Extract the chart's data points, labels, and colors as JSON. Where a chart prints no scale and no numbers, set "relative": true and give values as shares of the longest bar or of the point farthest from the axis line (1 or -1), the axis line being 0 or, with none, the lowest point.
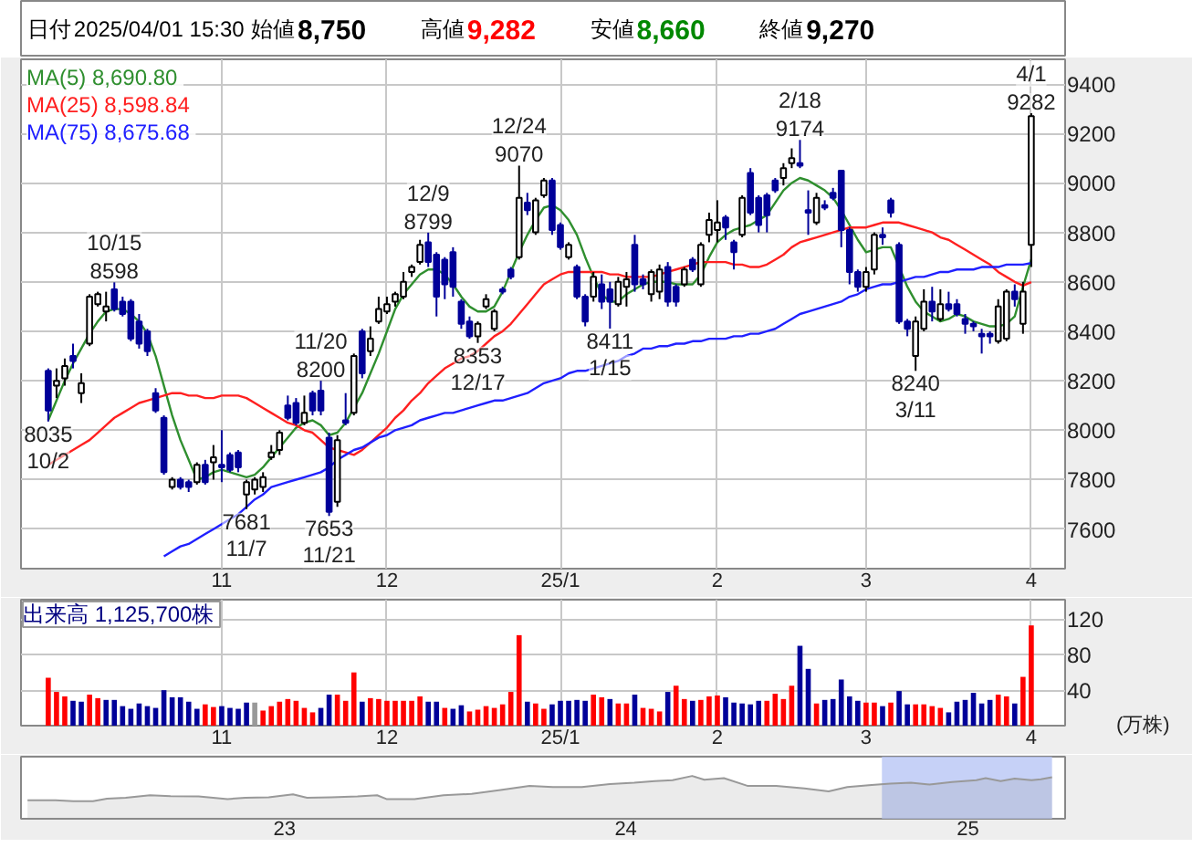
{
  "chart_data": [
    {
      "type": "candlestick",
      "annotations": [
        "日付",
        "2025/04/01 15:30",
        "始値",
        "8,750",
        "高値",
        "9,282",
        "安値",
        "8,660",
        "終値",
        "9,270",
        {
          "text": "10/15",
          "y": 8598
        },
        {
          "text": "8598",
          "y": 8598
        },
        {
          "text": "8035",
          "y": 8035
        },
        {
          "text": "10/2",
          "y": 8035
        },
        {
          "text": "7681",
          "y": 7681
        },
        {
          "text": "11/7",
          "y": 7681
        },
        {
          "text": "11/20",
          "y": 8200
        },
        {
          "text": "8200",
          "y": 8200
        },
        {
          "text": "7653",
          "y": 7653
        },
        {
          "text": "11/21",
          "y": 7653
        },
        {
          "text": "12/9",
          "y": 8799
        },
        {
          "text": "8799",
          "y": 8799
        },
        {
          "text": "8353",
          "y": 8353
        },
        {
          "text": "12/17",
          "y": 8353
        },
        {
          "text": "12/24",
          "y": 9070
        },
        {
          "text": "9070",
          "y": 9070
        },
        {
          "text": "8411",
          "y": 8411
        },
        {
          "text": "1/15",
          "y": 8411
        },
        {
          "text": "2/18",
          "y": 9174
        },
        {
          "text": "9174",
          "y": 9174
        },
        {
          "text": "8240",
          "y": 8240
        },
        {
          "text": "3/11",
          "y": 8240
        },
        {
          "text": "4/1",
          "y": 9282
        },
        {
          "text": "9282",
          "y": 9282
        }
      ],
      "categories": [
        null,
        null,
        null,
        null,
        null,
        null,
        null,
        null,
        null,
        null,
        null,
        null,
        null,
        null,
        null,
        null,
        null,
        null,
        null,
        null,
        null,
        "11",
        null,
        null,
        null,
        null,
        null,
        null,
        null,
        null,
        null,
        null,
        null,
        null,
        null,
        null,
        null,
        null,
        null,
        null,
        null,
        "12",
        null,
        null,
        null,
        null,
        null,
        null,
        null,
        null,
        null,
        null,
        null,
        null,
        null,
        null,
        null,
        null,
        null,
        null,
        null,
        null,
        "25/1",
        null,
        null,
        null,
        null,
        null,
        null,
        null,
        null,
        null,
        null,
        null,
        null,
        null,
        null,
        null,
        null,
        null,
        null,
        "2",
        null,
        null,
        null,
        null,
        null,
        null,
        null,
        null,
        null,
        null,
        null,
        null,
        null,
        null,
        null,
        null,
        null,
        "3",
        null,
        null,
        null,
        null,
        null,
        null,
        null,
        null,
        null,
        null,
        null,
        null,
        null,
        null,
        null,
        null,
        null,
        null,
        null,
        "4"
      ],
      "ohlc": [
        [
          8240,
          8250,
          8035,
          8080
        ],
        [
          8180,
          8250,
          8130,
          8200
        ],
        [
          8210,
          8290,
          8180,
          8260
        ],
        [
          8300,
          8350,
          8250,
          8280
        ],
        [
          8150,
          8230,
          8110,
          8190
        ],
        [
          8350,
          8550,
          8340,
          8540
        ],
        [
          8510,
          8560,
          8500,
          8550
        ],
        [
          8480,
          8560,
          8440,
          8500
        ],
        [
          8570,
          8598,
          8480,
          8490
        ],
        [
          8520,
          8540,
          8460,
          8470
        ],
        [
          8520,
          8530,
          8360,
          8370
        ],
        [
          8440,
          8470,
          8330,
          8350
        ],
        [
          8400,
          8410,
          8300,
          8320
        ],
        [
          8150,
          8170,
          8070,
          8080
        ],
        [
          8050,
          8060,
          7820,
          7830
        ],
        [
          7770,
          7810,
          7760,
          7800
        ],
        [
          7800,
          7810,
          7760,
          7770
        ],
        [
          7790,
          7800,
          7750,
          7770
        ],
        [
          7790,
          7870,
          7780,
          7860
        ],
        [
          7860,
          7880,
          7780,
          7790
        ],
        [
          7870,
          7940,
          7800,
          7890
        ],
        [
          7860,
          8000,
          7790,
          7850
        ],
        [
          7900,
          7910,
          7830,
          7840
        ],
        [
          7910,
          7920,
          7830,
          7850
        ],
        [
          7740,
          7800,
          7681,
          7790
        ],
        [
          7760,
          7810,
          7740,
          7800
        ],
        [
          7770,
          7830,
          7750,
          7810
        ],
        [
          7890,
          7940,
          7880,
          7910
        ],
        [
          7920,
          8000,
          7900,
          7990
        ],
        [
          8100,
          8140,
          8040,
          8050
        ],
        [
          8110,
          8130,
          8020,
          8030
        ],
        [
          8030,
          8140,
          8020,
          8070
        ],
        [
          8150,
          8160,
          8060,
          8080
        ],
        [
          8160,
          8200,
          8060,
          8080
        ],
        [
          7970,
          7990,
          7653,
          7670
        ],
        [
          7710,
          7980,
          7690,
          7960
        ],
        [
          8040,
          8150,
          8020,
          8030
        ],
        [
          8070,
          8310,
          8060,
          8300
        ],
        [
          8400,
          8410,
          8210,
          8230
        ],
        [
          8320,
          8420,
          8300,
          8370
        ],
        [
          8440,
          8540,
          8430,
          8490
        ],
        [
          8480,
          8540,
          8470,
          8510
        ],
        [
          8520,
          8560,
          8500,
          8550
        ],
        [
          8540,
          8640,
          8530,
          8600
        ],
        [
          8640,
          8670,
          8620,
          8660
        ],
        [
          8680,
          8770,
          8670,
          8750
        ],
        [
          8760,
          8799,
          8660,
          8680
        ],
        [
          8710,
          8720,
          8460,
          8540
        ],
        [
          8690,
          8700,
          8530,
          8590
        ],
        [
          8720,
          8740,
          8540,
          8580
        ],
        [
          8520,
          8530,
          8410,
          8430
        ],
        [
          8440,
          8460,
          8370,
          8380
        ],
        [
          8380,
          8440,
          8353,
          8430
        ],
        [
          8500,
          8550,
          8490,
          8530
        ],
        [
          8410,
          8490,
          8400,
          8480
        ],
        [
          8570,
          8580,
          8550,
          8560
        ],
        [
          8650,
          8660,
          8610,
          8620
        ],
        [
          8700,
          9070,
          8690,
          8940
        ],
        [
          8920,
          8960,
          8870,
          8890
        ],
        [
          8800,
          8940,
          8790,
          8930
        ],
        [
          8950,
          9020,
          8940,
          9010
        ],
        [
          9010,
          9020,
          8790,
          8810
        ],
        [
          8830,
          8840,
          8730,
          8740
        ],
        [
          8700,
          8760,
          8690,
          8750
        ],
        [
          8660,
          8670,
          8530,
          8540
        ],
        [
          8540,
          8550,
          8420,
          8440
        ],
        [
          8540,
          8640,
          8520,
          8620
        ],
        [
          8590,
          8630,
          8490,
          8520
        ],
        [
          8570,
          8600,
          8411,
          8520
        ],
        [
          8510,
          8620,
          8500,
          8600
        ],
        [
          8580,
          8640,
          8500,
          8610
        ],
        [
          8750,
          8790,
          8560,
          8590
        ],
        [
          8610,
          8630,
          8570,
          8590
        ],
        [
          8550,
          8650,
          8520,
          8640
        ],
        [
          8560,
          8670,
          8530,
          8650
        ],
        [
          8660,
          8680,
          8500,
          8520
        ],
        [
          8580,
          8590,
          8500,
          8520
        ],
        [
          8590,
          8660,
          8580,
          8650
        ],
        [
          8690,
          8700,
          8640,
          8650
        ],
        [
          8590,
          8760,
          8580,
          8750
        ],
        [
          8790,
          8880,
          8760,
          8850
        ],
        [
          8810,
          8930,
          8760,
          8840
        ],
        [
          8860,
          8870,
          8770,
          8820
        ],
        [
          8760,
          8770,
          8650,
          8720
        ],
        [
          8790,
          8950,
          8780,
          8940
        ],
        [
          9040,
          9060,
          8870,
          8880
        ],
        [
          8940,
          8950,
          8800,
          8830
        ],
        [
          8950,
          8960,
          8800,
          8870
        ],
        [
          9010,
          9020,
          8960,
          8970
        ],
        [
          9020,
          9080,
          8990,
          9060
        ],
        [
          9080,
          9140,
          9060,
          9100
        ],
        [
          9080,
          9174,
          9060,
          9070
        ],
        [
          8890,
          8970,
          8790,
          8880
        ],
        [
          8840,
          8960,
          8830,
          8940
        ],
        [
          8910,
          8930,
          8890,
          8900
        ],
        [
          8960,
          8980,
          8930,
          8940
        ],
        [
          9050,
          9050,
          8740,
          8810
        ],
        [
          8810,
          8820,
          8590,
          8640
        ],
        [
          8640,
          8650,
          8560,
          8580
        ],
        [
          8580,
          8660,
          8560,
          8640
        ],
        [
          8650,
          8800,
          8630,
          8790
        ],
        [
          8790,
          8820,
          8750,
          8780
        ],
        [
          8930,
          8940,
          8860,
          8880
        ],
        [
          8750,
          8760,
          8430,
          8440
        ],
        [
          8440,
          8450,
          8380,
          8410
        ],
        [
          8300,
          8460,
          8240,
          8440
        ],
        [
          8410,
          8570,
          8400,
          8520
        ],
        [
          8520,
          8580,
          8440,
          8480
        ],
        [
          8450,
          8570,
          8440,
          8510
        ],
        [
          8510,
          8560,
          8480,
          8490
        ],
        [
          8510,
          8530,
          8460,
          8470
        ],
        [
          8450,
          8470,
          8390,
          8430
        ],
        [
          8430,
          8440,
          8400,
          8420
        ],
        [
          8390,
          8410,
          8310,
          8380
        ],
        [
          8390,
          8400,
          8350,
          8380
        ],
        [
          8360,
          8530,
          8350,
          8500
        ],
        [
          8370,
          8570,
          8360,
          8560
        ],
        [
          8560,
          8590,
          8500,
          8530
        ],
        [
          8430,
          8600,
          8390,
          8560
        ],
        [
          8750,
          9282,
          8660,
          9270
        ]
      ],
      "colors": [
        "#000099",
        "#ffffff",
        "#ffffff",
        "#000099",
        "#ffffff",
        "#ffffff",
        "#ffffff",
        "#ffffff",
        "#000099",
        "#000099",
        "#000099",
        "#000099",
        "#000099",
        "#000099",
        "#000099",
        "#ffffff",
        "#000099",
        "#000099",
        "#ffffff",
        "#000099",
        "#ffffff",
        "#000099",
        "#000099",
        "#000099",
        "#ffffff",
        "#ffffff",
        "#ffffff",
        "#ffffff",
        "#ffffff",
        "#000099",
        "#000099",
        "#ffffff",
        "#000099",
        "#000099",
        "#000099",
        "#ffffff",
        "#000099",
        "#ffffff",
        "#000099",
        "#ffffff",
        "#ffffff",
        "#ffffff",
        "#ffffff",
        "#ffffff",
        "#ffffff",
        "#ffffff",
        "#000099",
        "#000099",
        "#000099",
        "#000099",
        "#000099",
        "#000099",
        "#ffffff",
        "#ffffff",
        "#ffffff",
        "#000099",
        "#000099",
        "#ffffff",
        "#000099",
        "#ffffff",
        "#ffffff",
        "#000099",
        "#000099",
        "#ffffff",
        "#000099",
        "#000099",
        "#ffffff",
        "#000099",
        "#000099",
        "#ffffff",
        "#ffffff",
        "#000099",
        "#000099",
        "#ffffff",
        "#ffffff",
        "#000099",
        "#000099",
        "#ffffff",
        "#000099",
        "#ffffff",
        "#ffffff",
        "#ffffff",
        "#000099",
        "#000099",
        "#ffffff",
        "#000099",
        "#000099",
        "#000099",
        "#000099",
        "#ffffff",
        "#ffffff",
        "#000099",
        "#000099",
        "#ffffff",
        "#000099",
        "#000099",
        "#000099",
        "#000099",
        "#000099",
        "#ffffff",
        "#ffffff",
        "#000099",
        "#000099",
        "#000099",
        "#000099",
        "#ffffff",
        "#ffffff",
        "#000099",
        "#ffffff",
        "#000099",
        "#000099",
        "#000099",
        "#000099",
        "#000099",
        "#000099",
        "#ffffff",
        "#ffffff",
        "#000099",
        "#ffffff",
        "#ffffff"
      ],
      "series": [
        {
          "type": "line",
          "name": "MA(5)  8,690.80",
          "color": "#2f8f2f",
          "values": [
            8040,
            8120,
            8200,
            8270,
            8330,
            8390,
            8440,
            8480,
            8490,
            8490,
            8470,
            8440,
            8390,
            8300,
            8180,
            8060,
            7960,
            7880,
            7800,
            7810,
            7830,
            7840,
            7830,
            7820,
            7810,
            7820,
            7850,
            7890,
            7930,
            7970,
            8010,
            8030,
            8040,
            8020,
            7980,
            7990,
            8030,
            8090,
            8150,
            8230,
            8310,
            8400,
            8490,
            8550,
            8590,
            8630,
            8650,
            8650,
            8630,
            8590,
            8540,
            8500,
            8480,
            8480,
            8500,
            8560,
            8640,
            8720,
            8790,
            8850,
            8900,
            8910,
            8890,
            8850,
            8790,
            8700,
            8620,
            8550,
            8520,
            8520,
            8550,
            8570,
            8590,
            8600,
            8600,
            8600,
            8590,
            8590,
            8590,
            8630,
            8700,
            8760,
            8790,
            8810,
            8820,
            8830,
            8850,
            8870,
            8920,
            8970,
            9000,
            9020,
            9010,
            8990,
            8970,
            8940,
            8890,
            8830,
            8770,
            8720,
            8730,
            8740,
            8740,
            8660,
            8580,
            8520,
            8480,
            8460,
            8440,
            8450,
            8470,
            8460,
            8440,
            8430,
            8420,
            8420,
            8430,
            8460,
            8580,
            8691
          ]
        },
        {
          "type": "line",
          "name": "MA(25)  8,598.84",
          "color": "#ff2020",
          "values": [
            7860,
            7880,
            7900,
            7920,
            7940,
            7960,
            7990,
            8020,
            8050,
            8070,
            8090,
            8110,
            8120,
            8130,
            8140,
            8150,
            8150,
            8140,
            8140,
            8130,
            8130,
            8140,
            8140,
            8140,
            8130,
            8110,
            8090,
            8070,
            8050,
            8030,
            8020,
            8000,
            7990,
            7960,
            7930,
            7920,
            7910,
            7900,
            7920,
            7950,
            7980,
            8010,
            8050,
            8080,
            8120,
            8150,
            8190,
            8220,
            8250,
            8270,
            8290,
            8300,
            8320,
            8350,
            8380,
            8400,
            8430,
            8470,
            8510,
            8550,
            8590,
            8610,
            8630,
            8640,
            8640,
            8640,
            8640,
            8640,
            8630,
            8630,
            8620,
            8620,
            8620,
            8620,
            8630,
            8640,
            8650,
            8660,
            8670,
            8680,
            8680,
            8680,
            8680,
            8670,
            8670,
            8660,
            8660,
            8670,
            8690,
            8710,
            8740,
            8760,
            8770,
            8780,
            8790,
            8800,
            8810,
            8820,
            8820,
            8820,
            8830,
            8840,
            8840,
            8840,
            8830,
            8820,
            8810,
            8800,
            8780,
            8770,
            8750,
            8730,
            8710,
            8690,
            8670,
            8640,
            8620,
            8600,
            8585,
            8599
          ]
        },
        {
          "type": "line",
          "name": "MA(75)  8,675.68",
          "color": "#2020ff",
          "values": [
            null,
            null,
            null,
            null,
            null,
            null,
            null,
            null,
            null,
            null,
            null,
            null,
            null,
            null,
            7490,
            7510,
            7530,
            7540,
            7560,
            7580,
            7600,
            7620,
            7640,
            7660,
            7690,
            7720,
            7740,
            7770,
            7780,
            7790,
            7800,
            7810,
            7820,
            7830,
            7850,
            7880,
            7900,
            7920,
            7930,
            7950,
            7970,
            7980,
            8000,
            8010,
            8020,
            8040,
            8050,
            8060,
            8070,
            8070,
            8080,
            8090,
            8100,
            8110,
            8120,
            8120,
            8130,
            8140,
            8150,
            8170,
            8190,
            8200,
            8210,
            8230,
            8240,
            8240,
            8250,
            8260,
            8270,
            8280,
            8300,
            8310,
            8330,
            8330,
            8340,
            8340,
            8350,
            8350,
            8360,
            8360,
            8370,
            8370,
            8370,
            8380,
            8380,
            8390,
            8390,
            8400,
            8410,
            8430,
            8450,
            8470,
            8480,
            8490,
            8500,
            8510,
            8520,
            8540,
            8550,
            8570,
            8580,
            8590,
            8590,
            8600,
            8610,
            8620,
            8620,
            8630,
            8640,
            8640,
            8650,
            8650,
            8650,
            8660,
            8660,
            8660,
            8670,
            8670,
            8670,
            8676
          ]
        }
      ],
      "ylim": [
        7440,
        9500
      ],
      "yticks": [
        7600,
        7800,
        8000,
        8200,
        8400,
        8600,
        8800,
        9000,
        9200,
        9400
      ],
      "grid": true,
      "legend": "top left"
    },
    {
      "type": "bar",
      "title": "出来高  1,125,700株",
      "ylabel": "(万株)",
      "categories": [
        null,
        null,
        null,
        null,
        null,
        null,
        null,
        null,
        null,
        null,
        null,
        null,
        null,
        null,
        null,
        null,
        null,
        null,
        null,
        null,
        null,
        "11",
        null,
        null,
        null,
        null,
        null,
        null,
        null,
        null,
        null,
        null,
        null,
        null,
        null,
        null,
        null,
        null,
        null,
        null,
        null,
        "12",
        null,
        null,
        null,
        null,
        null,
        null,
        null,
        null,
        null,
        null,
        null,
        null,
        null,
        null,
        null,
        null,
        null,
        null,
        null,
        null,
        "25/1",
        null,
        null,
        null,
        null,
        null,
        null,
        null,
        null,
        null,
        null,
        null,
        null,
        null,
        null,
        null,
        null,
        null,
        null,
        "2",
        null,
        null,
        null,
        null,
        null,
        null,
        null,
        null,
        null,
        null,
        null,
        null,
        null,
        null,
        null,
        null,
        null,
        "3",
        null,
        null,
        null,
        null,
        null,
        null,
        null,
        null,
        null,
        null,
        null,
        null,
        null,
        null,
        null,
        null,
        null,
        null,
        null,
        "4"
      ],
      "values": [
        54,
        38,
        33,
        28,
        27,
        35,
        31,
        29,
        29,
        22,
        19,
        25,
        22,
        20,
        40,
        32,
        32,
        27,
        19,
        24,
        21,
        22,
        20,
        19,
        26,
        26,
        17,
        22,
        27,
        30,
        28,
        20,
        15,
        20,
        35,
        35,
        28,
        60,
        27,
        31,
        30,
        28,
        28,
        28,
        28,
        33,
        27,
        27,
        20,
        19,
        23,
        16,
        18,
        22,
        20,
        24,
        38,
        102,
        27,
        25,
        19,
        24,
        28,
        28,
        29,
        28,
        35,
        32,
        30,
        25,
        25,
        35,
        20,
        19,
        16,
        38,
        45,
        30,
        28,
        29,
        33,
        34,
        32,
        26,
        25,
        24,
        28,
        28,
        36,
        30,
        45,
        90,
        64,
        25,
        29,
        30,
        52,
        33,
        28,
        26,
        26,
        22,
        26,
        39,
        24,
        24,
        24,
        22,
        20,
        15,
        27,
        29,
        37,
        25,
        29,
        35,
        33,
        25,
        55,
        113
      ],
      "colors": [
        "#ff0000",
        "#ff0000",
        "#ff0000",
        "#000099",
        "#000099",
        "#ff0000",
        "#ff0000",
        "#000099",
        "#000099",
        "#000099",
        "#000099",
        "#000099",
        "#000099",
        "#000099",
        "#000099",
        "#000099",
        "#000099",
        "#000099",
        "#000099",
        "#ff0000",
        "#ff0000",
        "#000099",
        "#000099",
        "#000099",
        "#000099",
        "#999999",
        "#ff0000",
        "#ff0000",
        "#ff0000",
        "#ff0000",
        "#ff0000",
        "#ff0000",
        "#ff0000",
        "#000099",
        "#000099",
        "#ff0000",
        "#ff0000",
        "#ff0000",
        "#000099",
        "#ff0000",
        "#ff0000",
        "#ff0000",
        "#ff0000",
        "#ff0000",
        "#ff0000",
        "#ff0000",
        "#000099",
        "#000099",
        "#ff0000",
        "#000099",
        "#000099",
        "#ff0000",
        "#ff0000",
        "#ff0000",
        "#ff0000",
        "#ff0000",
        "#ff0000",
        "#ff0000",
        "#000099",
        "#ff0000",
        "#ff0000",
        "#000099",
        "#000099",
        "#000099",
        "#000099",
        "#000099",
        "#ff0000",
        "#ff0000",
        "#000099",
        "#ff0000",
        "#ff0000",
        "#000099",
        "#ff0000",
        "#ff0000",
        "#ff0000",
        "#000099",
        "#ff0000",
        "#ff0000",
        "#000099",
        "#ff0000",
        "#ff0000",
        "#ff0000",
        "#000099",
        "#000099",
        "#000099",
        "#000099",
        "#000099",
        "#ff0000",
        "#ff0000",
        "#ff0000",
        "#ff0000",
        "#000099",
        "#000099",
        "#ff0000",
        "#000099",
        "#000099",
        "#000099",
        "#000099",
        "#000099",
        "#ff0000",
        "#ff0000",
        "#000099",
        "#ff0000",
        "#000099",
        "#000099",
        "#ff0000",
        "#ff0000",
        "#ff0000",
        "#ff0000",
        "#000099",
        "#000099",
        "#000099",
        "#000099",
        "#000099",
        "#000099",
        "#ff0000",
        "#ff0000",
        "#000099",
        "#ff0000",
        "#ff0000"
      ],
      "ylim": [
        0,
        142
      ],
      "yticks": [
        40,
        80,
        120
      ],
      "grid": true
    },
    {
      "type": "area",
      "relative": true,
      "x": [
        "2022-04-01",
        "2022-05-01",
        "2022-05-20",
        "2022-06-10",
        "2022-06-25",
        "2022-07-15",
        "2022-08-10",
        "2022-09-01",
        "2022-10-01",
        "2022-11-01",
        "2022-11-20",
        "2022-12-15",
        "2023-01-10",
        "2023-01-25",
        "2023-02-20",
        "2023-03-20",
        "2023-04-10",
        "2023-04-20",
        "2023-05-20",
        "2023-06-20",
        "2023-07-20",
        "2023-08-20",
        "2023-09-20",
        "2023-10-15",
        "2023-11-15",
        "2023-12-15",
        "2024-01-10",
        "2024-02-01",
        "2024-02-20",
        "2024-03-12",
        "2024-03-25",
        "2024-04-15",
        "2024-05-10",
        "2024-06-10",
        "2024-07-10",
        "2024-08-05",
        "2024-08-25",
        "2024-09-20",
        "2024-10-10",
        "2024-11-01",
        "2024-11-21",
        "2024-12-15",
        "2025-01-10",
        "2025-01-20",
        "2025-02-05",
        "2025-02-20",
        "2025-03-10",
        "2025-03-20",
        "2025-04-01"
      ],
      "series": [
        {
          "color": "#999999",
          "values": [
            0.43,
            0.43,
            0.41,
            0.41,
            0.47,
            0.49,
            0.55,
            0.53,
            0.52,
            0.46,
            0.49,
            0.5,
            0.57,
            0.49,
            0.5,
            0.52,
            0.55,
            0.46,
            0.46,
            0.55,
            0.58,
            0.67,
            0.77,
            0.74,
            0.74,
            0.81,
            0.84,
            0.88,
            0.9,
            1.0,
            0.91,
            0.95,
            0.77,
            0.77,
            0.71,
            0.64,
            0.74,
            0.79,
            0.82,
            0.84,
            0.8,
            0.86,
            0.9,
            0.95,
            0.88,
            0.94,
            0.9,
            0.92,
            0.97
          ]
        }
      ],
      "xlim": [
        "2022-03-25",
        "2025-04-15"
      ],
      "xticks": [
        {
          "value": "2023-01-01",
          "label": "23"
        },
        {
          "value": "2024-01-01",
          "label": "24"
        },
        {
          "value": "2025-01-01",
          "label": "25"
        }
      ],
      "bands": [
        {
          "axis": "x",
          "from": "2024-10-01",
          "to": "2025-04-01",
          "color": "#b8c5f5"
        }
      ]
    }
  ]
}
